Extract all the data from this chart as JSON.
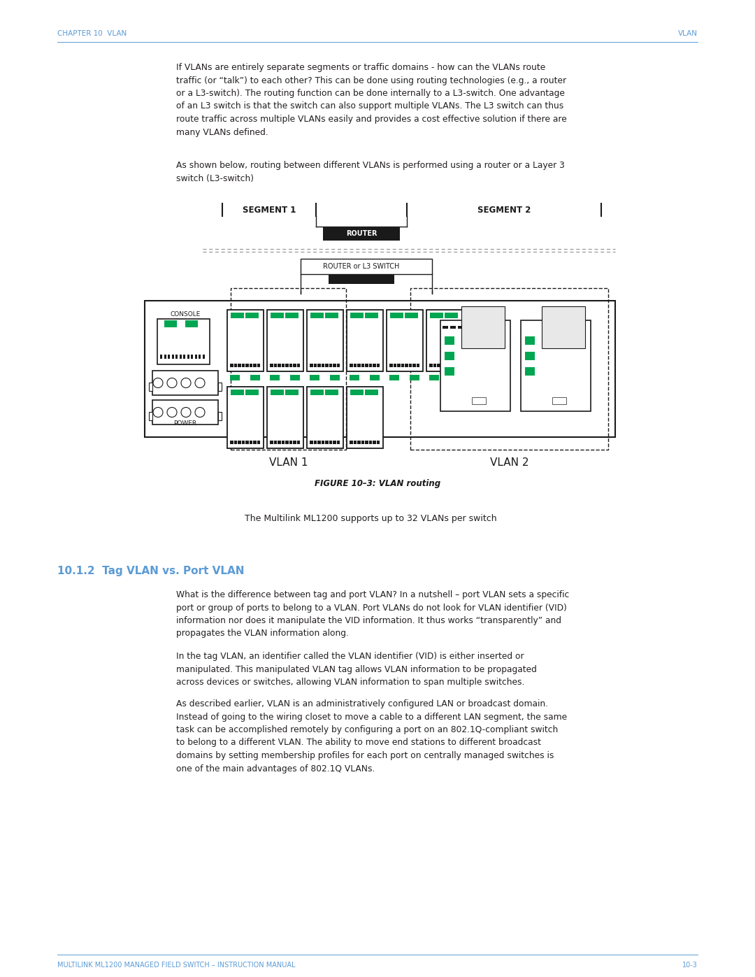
{
  "page_bg": "#ffffff",
  "header_color": "#5b9bd5",
  "header_left": "CHAPTER 10  VLAN",
  "header_right": "VLAN",
  "footer_left": "MULTILINK ML1200 MANAGED FIELD SWITCH – INSTRUCTION MANUAL",
  "footer_right": "10-3",
  "footer_color": "#5b9bd5",
  "body_text_color": "#231f20",
  "section_heading": "10.1.2  Tag VLAN vs. Port VLAN",
  "section_heading_color": "#5b9bd5",
  "paragraph1": "If VLANs are entirely separate segments or traffic domains - how can the VLANs route\ntraffic (or “talk”) to each other? This can be done using routing technologies (e.g., a router\nor a L3-switch). The routing function can be done internally to a L3-switch. One advantage\nof an L3 switch is that the switch can also support multiple VLANs. The L3 switch can thus\nroute traffic across multiple VLANs easily and provides a cost effective solution if there are\nmany VLANs defined.",
  "paragraph2": "As shown below, routing between different VLANs is performed using a router or a Layer 3\nswitch (L3-switch)",
  "figure_caption": "FIGURE 10–3: VLAN routing",
  "ml_text": "The Multilink ML1200 supports up to 32 VLANs per switch",
  "tag_para1": "What is the difference between tag and port VLAN? In a nutshell – port VLAN sets a specific\nport or group of ports to belong to a VLAN. Port VLANs do not look for VLAN identifier (VID)\ninformation nor does it manipulate the VID information. It thus works “transparently” and\npropagates the VLAN information along.",
  "tag_para2": "In the tag VLAN, an identifier called the VLAN identifier (VID) is either inserted or\nmanipulated. This manipulated VLAN tag allows VLAN information to be propagated\nacross devices or switches, allowing VLAN information to span multiple switches.",
  "tag_para3": "As described earlier, VLAN is an administratively configured LAN or broadcast domain.\nInstead of going to the wiring closet to move a cable to a different LAN segment, the same\ntask can be accomplished remotely by configuring a port on an 802.1Q-compliant switch\nto belong to a different VLAN. The ability to move end stations to different broadcast\ndomains by setting membership profiles for each port on centrally managed switches is\none of the main advantages of 802.1Q VLANs.",
  "segment1_label": "SEGMENT 1",
  "segment2_label": "SEGMENT 2",
  "router_label": "ROUTER",
  "router_l3_label": "ROUTER or L3 SWITCH",
  "vlan1_label": "VLAN 1",
  "vlan2_label": "VLAN 2",
  "console_label": "CONSOLE",
  "power_label": "POWER",
  "dark_color": "#1a1a1a",
  "green_color": "#00a651",
  "dashed_line_color": "#999999",
  "light_gray": "#cccccc",
  "medium_gray": "#888888",
  "port_gray": "#d0d0d0"
}
